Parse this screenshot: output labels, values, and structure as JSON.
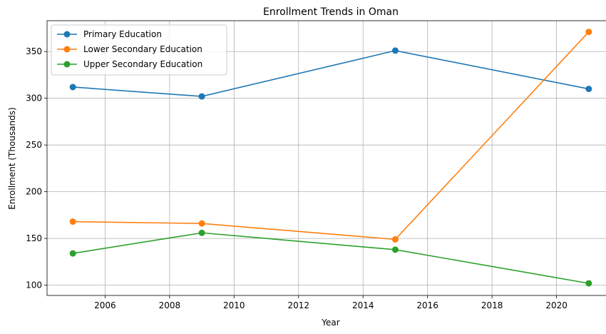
{
  "chart_data": {
    "type": "line",
    "title": "Enrollment Trends in Oman",
    "xlabel": "Year",
    "ylabel": "Enrollment (Thousands)",
    "xlim": [
      2004.2,
      2021.8
    ],
    "ylim": [
      89,
      383
    ],
    "xticks": [
      2006,
      2008,
      2010,
      2012,
      2014,
      2016,
      2018,
      2020
    ],
    "yticks": [
      100,
      150,
      200,
      250,
      300,
      350
    ],
    "grid": true,
    "legend_position": "top-left",
    "x": [
      2005,
      2009,
      2015,
      2021
    ],
    "series": [
      {
        "name": "Primary Education",
        "color": "#1f77b4",
        "values": [
          312,
          302,
          351,
          310
        ]
      },
      {
        "name": "Lower Secondary Education",
        "color": "#ff7f0e",
        "values": [
          168,
          166,
          149,
          371
        ]
      },
      {
        "name": "Upper Secondary Education",
        "color": "#2ca02c",
        "values": [
          134,
          156,
          138,
          102
        ]
      }
    ]
  }
}
